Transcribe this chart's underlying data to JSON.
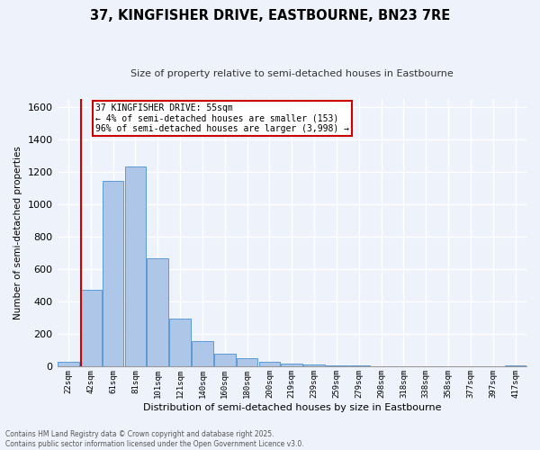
{
  "title": "37, KINGFISHER DRIVE, EASTBOURNE, BN23 7RE",
  "subtitle": "Size of property relative to semi-detached houses in Eastbourne",
  "xlabel": "Distribution of semi-detached houses by size in Eastbourne",
  "ylabel": "Number of semi-detached properties",
  "bins": [
    "22sqm",
    "42sqm",
    "61sqm",
    "81sqm",
    "101sqm",
    "121sqm",
    "140sqm",
    "160sqm",
    "180sqm",
    "200sqm",
    "219sqm",
    "239sqm",
    "259sqm",
    "279sqm",
    "298sqm",
    "318sqm",
    "338sqm",
    "358sqm",
    "377sqm",
    "397sqm",
    "417sqm"
  ],
  "values": [
    25,
    470,
    1145,
    1235,
    665,
    295,
    155,
    75,
    50,
    30,
    18,
    10,
    5,
    3,
    2,
    1,
    1,
    0,
    0,
    0,
    5
  ],
  "bar_color": "#aec6e8",
  "bar_edge_color": "#5b9bd5",
  "vline_color": "#cc0000",
  "vline_x": 0.55,
  "annotation_title": "37 KINGFISHER DRIVE: 55sqm",
  "annotation_line1": "← 4% of semi-detached houses are smaller (153)",
  "annotation_line2": "96% of semi-detached houses are larger (3,998) →",
  "annotation_box_color": "#ffffff",
  "annotation_box_edge": "#cc0000",
  "bg_color": "#eef2fa",
  "grid_color": "#ffffff",
  "ylim": [
    0,
    1650
  ],
  "yticks": [
    0,
    200,
    400,
    600,
    800,
    1000,
    1200,
    1400,
    1600
  ],
  "footer1": "Contains HM Land Registry data © Crown copyright and database right 2025.",
  "footer2": "Contains public sector information licensed under the Open Government Licence v3.0.",
  "title_fontsize": 10.5,
  "subtitle_fontsize": 8,
  "ylabel_fontsize": 7.5,
  "xlabel_fontsize": 8,
  "tick_fontsize": 6.5,
  "ytick_fontsize": 8,
  "footer_fontsize": 5.5,
  "ann_fontsize": 7
}
